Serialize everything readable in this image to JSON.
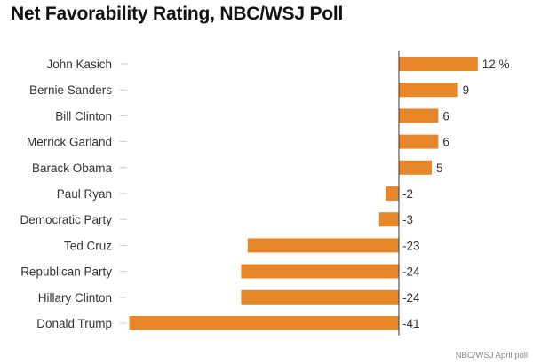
{
  "title": "Net Favorability Rating, NBC/WSJ Poll",
  "source": "NBC/WSJ April poll",
  "colors": {
    "bar": "#E8862A",
    "axis": "#333333",
    "tick": "#c8c8c8"
  },
  "chart_data": {
    "type": "bar",
    "orientation": "horizontal",
    "title": "Net Favorability Rating, NBC/WSJ Poll",
    "categories": [
      "John Kasich",
      "Bernie Sanders",
      "Bill Clinton",
      "Merrick Garland",
      "Barack Obama",
      "Paul Ryan",
      "Democratic Party",
      "Ted Cruz",
      "Republican Party",
      "Hillary Clinton",
      "Donald Trump"
    ],
    "values": [
      12,
      9,
      6,
      6,
      5,
      -2,
      -3,
      -23,
      -24,
      -24,
      -41
    ],
    "value_labels": [
      "12 %",
      "9",
      "6",
      "6",
      "5",
      "-2",
      "-3",
      "-23",
      "-24",
      "-24",
      "-41"
    ],
    "xlim": [
      -41,
      13
    ],
    "grid": false,
    "legend": "none"
  }
}
